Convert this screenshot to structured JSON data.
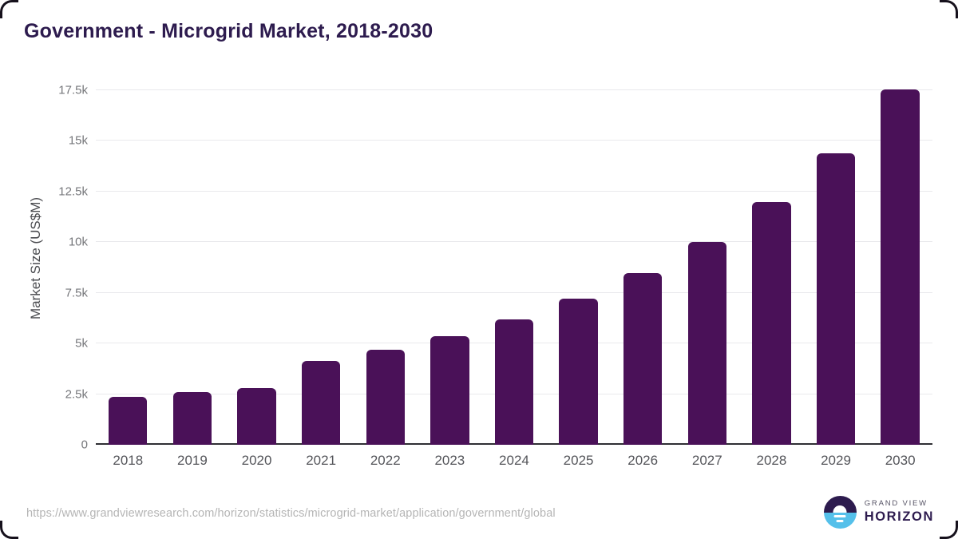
{
  "title": "Government - Microgrid Market, 2018-2030",
  "chart_data": {
    "type": "bar",
    "title": "Government - Microgrid Market, 2018-2030",
    "categories": [
      "2018",
      "2019",
      "2020",
      "2021",
      "2022",
      "2023",
      "2024",
      "2025",
      "2026",
      "2027",
      "2028",
      "2029",
      "2030"
    ],
    "values": [
      2370,
      2600,
      2790,
      4130,
      4700,
      5360,
      6190,
      7210,
      8470,
      10010,
      11980,
      14390,
      17550
    ],
    "xlabel": "",
    "ylabel": "Market Size (US$M)",
    "ylim": [
      0,
      17500
    ],
    "yticks": [
      0,
      2500,
      5000,
      7500,
      10000,
      12500,
      15000,
      17500
    ],
    "ytick_labels": [
      "0",
      "2.5k",
      "5k",
      "7.5k",
      "10k",
      "12.5k",
      "15k",
      "17.5k"
    ],
    "grid": true,
    "legend": "none",
    "bar_color": "#4a1158"
  },
  "footer": {
    "source_url": "https://www.grandviewresearch.com/horizon/statistics/microgrid-market/application/government/global",
    "logo": {
      "line1": "GRAND VIEW",
      "line2": "HORIZON"
    }
  },
  "colors": {
    "title": "#2d1b4e",
    "bar": "#4a1158",
    "gridline": "#e9e9ec",
    "axis_line": "#2f2f33",
    "tick_text": "#76777b",
    "logo_blue": "#55c0ea",
    "frame": "#16111c"
  }
}
